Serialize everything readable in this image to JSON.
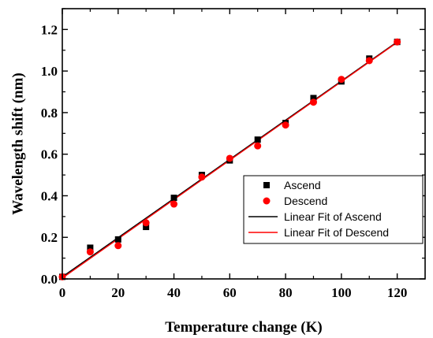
{
  "chart_data": {
    "type": "scatter",
    "xlabel": "Temperature change (K)",
    "ylabel": "Wavelength shift (nm)",
    "xlim": [
      0,
      130
    ],
    "ylim": [
      0,
      1.3
    ],
    "xticks": [
      "0",
      "20",
      "40",
      "60",
      "80",
      "100",
      "120"
    ],
    "xtick_values": [
      0,
      20,
      40,
      60,
      80,
      100,
      120
    ],
    "yticks": [
      "0.0",
      "0.2",
      "0.4",
      "0.6",
      "0.8",
      "1.0",
      "1.2"
    ],
    "ytick_values": [
      0,
      0.2,
      0.4,
      0.6,
      0.8,
      1.0,
      1.2
    ],
    "grid": false,
    "legend_position": "center-right",
    "series": [
      {
        "name": "Ascend",
        "marker": "square",
        "color": "#000000",
        "x": [
          0,
          10,
          20,
          30,
          40,
          50,
          60,
          70,
          80,
          90,
          100,
          110,
          120
        ],
        "y": [
          0.01,
          0.15,
          0.19,
          0.25,
          0.39,
          0.5,
          0.57,
          0.67,
          0.75,
          0.87,
          0.95,
          1.06,
          1.14
        ]
      },
      {
        "name": "Descend",
        "marker": "circle",
        "color": "#ff0000",
        "x": [
          0,
          10,
          20,
          30,
          40,
          50,
          60,
          70,
          80,
          90,
          100,
          110,
          120
        ],
        "y": [
          0.01,
          0.13,
          0.16,
          0.27,
          0.36,
          0.49,
          0.58,
          0.64,
          0.74,
          0.85,
          0.96,
          1.05,
          1.14
        ]
      }
    ],
    "fits": [
      {
        "name": "Linear Fit of Ascend",
        "color": "#000000",
        "slope": 0.00942,
        "intercept": 0.01
      },
      {
        "name": "Linear Fit of Descend",
        "color": "#ff0000",
        "slope": 0.00945,
        "intercept": 0.004
      }
    ]
  }
}
